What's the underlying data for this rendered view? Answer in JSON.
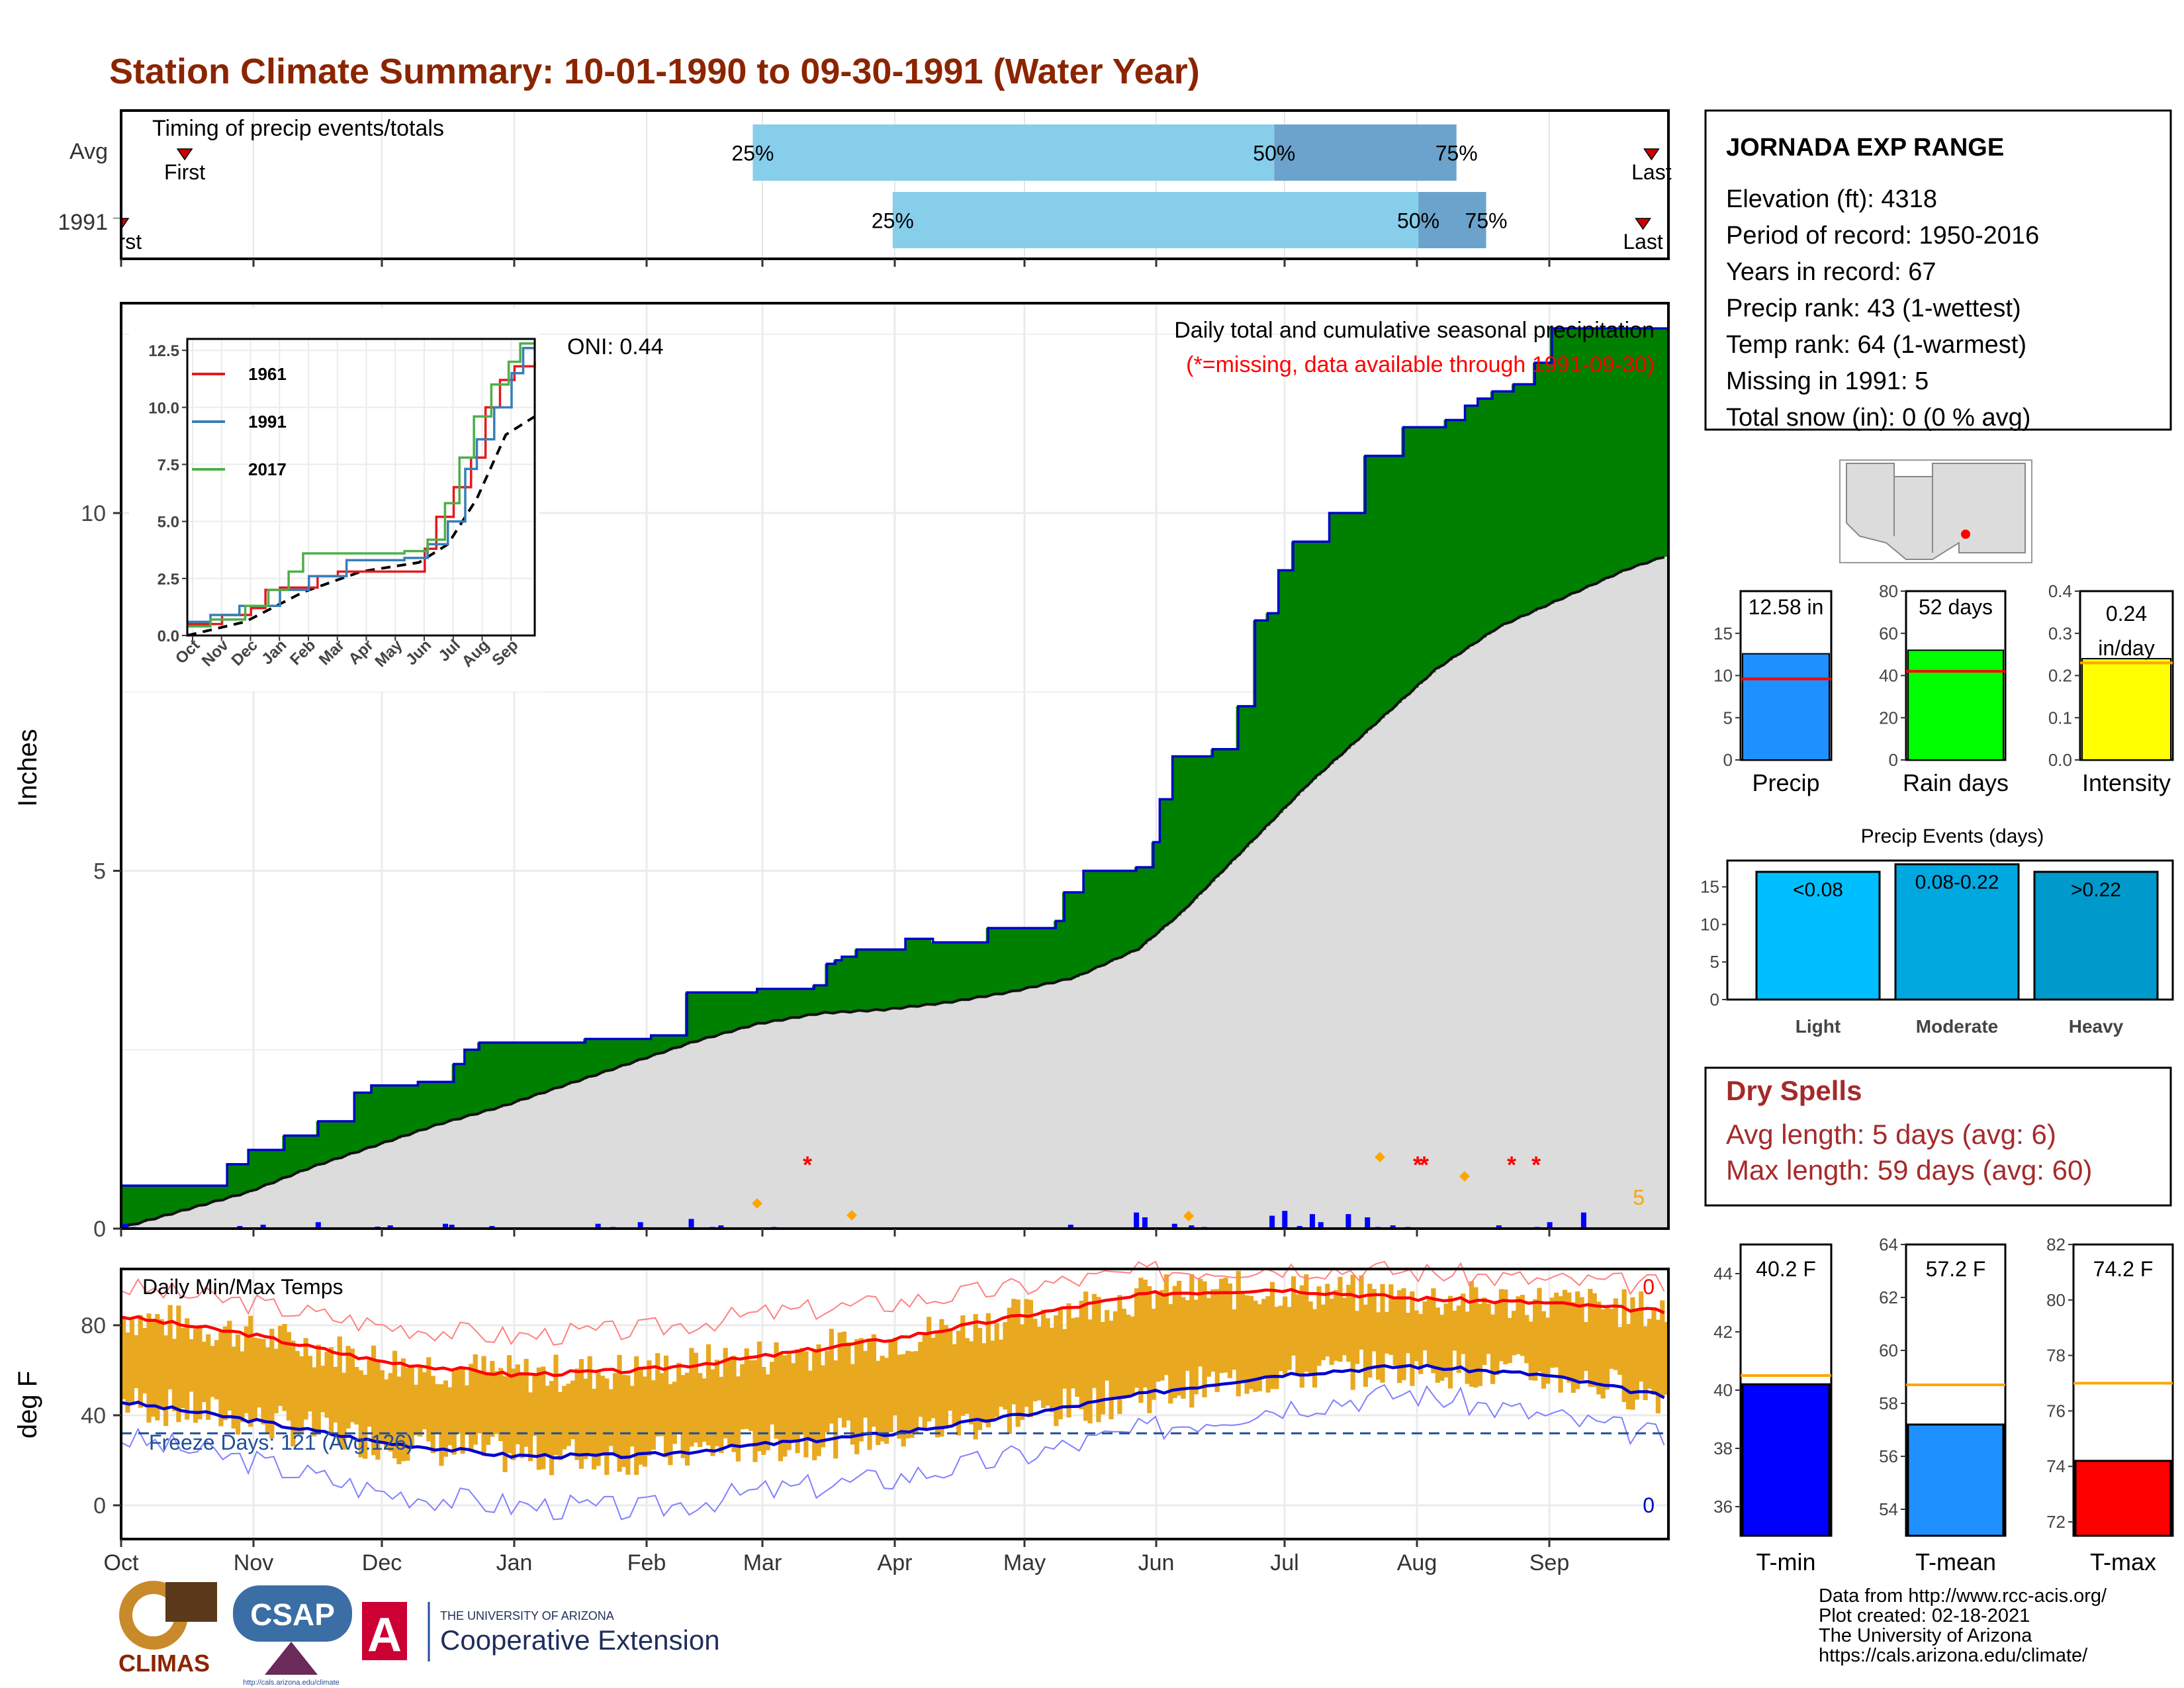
{
  "title": "Station Climate Summary: 10-01-1990 to 09-30-1991 (Water Year)",
  "colors": {
    "title": "#8B2500",
    "light_blue": "#87CEEB",
    "mid_blue": "#6BA3CC",
    "green": "#008000",
    "brown": "#8B5A1A",
    "gray_fill": "#DCDCDC",
    "blue_line": "#0000CD",
    "red": "#FF0000",
    "orange": "#FFA500",
    "temp_bar": "#E8A820",
    "dry_red": "#A52A2A"
  },
  "months": [
    "Oct",
    "Nov",
    "Dec",
    "Jan",
    "Feb",
    "Mar",
    "Apr",
    "May",
    "Jun",
    "Jul",
    "Aug",
    "Sep"
  ],
  "timing": {
    "label": "Timing of precip events/totals",
    "rows": [
      {
        "name": "Avg",
        "first_label": "First",
        "last_label": "Last",
        "first_doy": 15,
        "last_doy": 361,
        "p25": 149,
        "p50": 272,
        "p75": 315
      },
      {
        "name": "1991",
        "first_label": "First",
        "last_label": "Last",
        "first_doy": 0,
        "last_doy": 359,
        "p25": 182,
        "p50": 306,
        "p75": 322
      }
    ],
    "pct_labels": [
      "25%",
      "50%",
      "75%"
    ]
  },
  "precip_panel": {
    "ylabel": "Inches",
    "oni": "ONI: 0.44",
    "caption": "Daily total and cumulative seasonal precipitation",
    "missing_note": "(*=missing, data available through 1991-09-30)",
    "missing_count": "5",
    "yticks": [
      "0",
      "5",
      "10"
    ]
  },
  "inset": {
    "yticks": [
      "0.0",
      "2.5",
      "5.0",
      "7.5",
      "10.0",
      "12.5"
    ],
    "months": [
      "Oct",
      "Nov",
      "Dec",
      "Jan",
      "Feb",
      "Mar",
      "Apr",
      "May",
      "Jun",
      "Jul",
      "Aug",
      "Sep"
    ],
    "legend": [
      {
        "name": "1961",
        "color": "#E41A1C"
      },
      {
        "name": "1991",
        "color": "#377EB8"
      },
      {
        "name": "2017",
        "color": "#4DAF4A"
      }
    ]
  },
  "temp_panel": {
    "ylabel": "deg F",
    "label": "Daily Min/Max Temps",
    "freeze": "Freeze Days: 121 (Avg:126)",
    "max_count": "0",
    "min_count": "0",
    "yticks": [
      "0",
      "40",
      "80"
    ]
  },
  "station": {
    "name": "JORNADA EXP RANGE",
    "lines": [
      "Elevation (ft): 4318",
      "Period of record: 1950-2016",
      "Years in record: 67",
      "Precip rank: 43 (1-wettest)",
      "Temp rank: 64 (1-warmest)",
      "Missing in 1991: 5",
      "Total snow (in): 0 (0 % avg)"
    ]
  },
  "mini_bars": [
    {
      "label": "Precip",
      "value_text": "12.58 in",
      "value": 12.58,
      "avg": 9.6,
      "max": 20,
      "ticks": [
        "0",
        "5",
        "10",
        "15"
      ],
      "color": "#1E90FF"
    },
    {
      "label": "Rain days",
      "value_text": "52 days",
      "value": 52,
      "avg": 42,
      "max": 80,
      "ticks": [
        "0",
        "20",
        "40",
        "60",
        "80"
      ],
      "color": "#00FF00"
    },
    {
      "label": "Intensity",
      "value_text": "0.24 in/day",
      "value": 0.24,
      "avg": 0.23,
      "max": 0.4,
      "ticks": [
        "0.0",
        "0.1",
        "0.2",
        "0.3",
        "0.4"
      ],
      "color": "#FFFF00"
    }
  ],
  "precip_events": {
    "title": "Precip Events (days)",
    "ticks": [
      "0",
      "5",
      "10",
      "15"
    ],
    "bars": [
      {
        "label": "Light",
        "inner": "<0.08",
        "value": 17,
        "color": "#00BFFF"
      },
      {
        "label": "Moderate",
        "inner": "0.08-0.22",
        "value": 18,
        "color": "#00A8E0"
      },
      {
        "label": "Heavy",
        "inner": ">0.22",
        "value": 17,
        "color": "#0099CC"
      }
    ]
  },
  "dry_spells": {
    "title": "Dry Spells",
    "avg": "Avg length: 5 days (avg: 6)",
    "max": "Max length: 59 days (avg: 60)"
  },
  "temp_bars": [
    {
      "label": "T-min",
      "value_text": "40.2 F",
      "value": 40.2,
      "avg": 40.5,
      "ymin": 35,
      "ymax": 45,
      "ticks": [
        "36",
        "38",
        "40",
        "42",
        "44"
      ],
      "color": "#0000FF"
    },
    {
      "label": "T-mean",
      "value_text": "57.2 F",
      "value": 57.2,
      "avg": 58.7,
      "ymin": 53,
      "ymax": 64,
      "ticks": [
        "54",
        "56",
        "58",
        "60",
        "62",
        "64"
      ],
      "color": "#1E90FF"
    },
    {
      "label": "T-max",
      "value_text": "74.2 F",
      "value": 74.2,
      "avg": 77,
      "ymin": 71.5,
      "ymax": 82,
      "ticks": [
        "72",
        "74",
        "76",
        "78",
        "80",
        "82"
      ],
      "color": "#FF0000"
    }
  ],
  "footer": {
    "lines": [
      "Data from http://www.rcc-acis.org/",
      "Plot created: 02-18-2021",
      "The University of Arizona",
      "https://cals.arizona.edu/climate/"
    ],
    "logos": {
      "climas": "CLIMAS",
      "csap": "CSAP",
      "csap_url": "http://cals.arizona.edu/climate",
      "ua_small": "THE UNIVERSITY OF ARIZONA",
      "ua_big": "Cooperative Extension"
    }
  },
  "chart_data": [
    {
      "type": "area",
      "title": "Daily total and cumulative seasonal precipitation",
      "ylabel": "Inches",
      "ylim": [
        0,
        12.6
      ],
      "x_unit": "day of water year",
      "cumulative_1991": [
        [
          0,
          0.6
        ],
        [
          20,
          0.6
        ],
        [
          50,
          0.9
        ],
        [
          60,
          1.1
        ],
        [
          77,
          1.3
        ],
        [
          83,
          1.3
        ],
        [
          93,
          1.5
        ],
        [
          110,
          1.9
        ],
        [
          118,
          2.0
        ],
        [
          140,
          2.05
        ],
        [
          157,
          2.3
        ],
        [
          162,
          2.5
        ],
        [
          169,
          2.6
        ],
        [
          190,
          2.6
        ],
        [
          219,
          2.65
        ],
        [
          229,
          2.65
        ],
        [
          250,
          2.7
        ],
        [
          267,
          3.3
        ],
        [
          290,
          3.3
        ],
        [
          300,
          3.35
        ],
        [
          307,
          3.35
        ],
        [
          327,
          3.4
        ],
        [
          333,
          3.7
        ],
        [
          337,
          3.75
        ],
        [
          340,
          3.8
        ],
        [
          347,
          3.9
        ],
        [
          352,
          3.9
        ],
        [
          370,
          4.05
        ],
        [
          378,
          4.05
        ],
        [
          383,
          4.0
        ],
        [
          400,
          4.0
        ],
        [
          409,
          4.2
        ],
        [
          426,
          4.2
        ],
        [
          441,
          4.3
        ],
        [
          445,
          4.7
        ],
        [
          454,
          5.0
        ],
        [
          470,
          5.0
        ],
        [
          479,
          5.05
        ],
        [
          487,
          5.4
        ],
        [
          490,
          6.0
        ],
        [
          496,
          6.6
        ],
        [
          515,
          6.7
        ],
        [
          527,
          7.3
        ],
        [
          535,
          8.5
        ],
        [
          541,
          8.6
        ],
        [
          546,
          9.2
        ],
        [
          553,
          9.6
        ],
        [
          570,
          10.0
        ],
        [
          587,
          10.8
        ],
        [
          605,
          11.2
        ],
        [
          625,
          11.3
        ],
        [
          634,
          11.5
        ],
        [
          640,
          11.6
        ],
        [
          647,
          11.7
        ],
        [
          657,
          11.8
        ],
        [
          667,
          12.1
        ],
        [
          675,
          12.58
        ],
        [
          730,
          12.58
        ]
      ],
      "cumulative_avg": [
        [
          0,
          0
        ],
        [
          30,
          0.25
        ],
        [
          60,
          0.5
        ],
        [
          90,
          0.85
        ],
        [
          120,
          1.15
        ],
        [
          150,
          1.45
        ],
        [
          180,
          1.7
        ],
        [
          210,
          2.0
        ],
        [
          240,
          2.3
        ],
        [
          270,
          2.6
        ],
        [
          300,
          2.85
        ],
        [
          330,
          3.0
        ],
        [
          360,
          3.05
        ],
        [
          390,
          3.15
        ],
        [
          420,
          3.3
        ],
        [
          450,
          3.5
        ],
        [
          480,
          3.9
        ],
        [
          500,
          4.4
        ],
        [
          520,
          5.0
        ],
        [
          540,
          5.6
        ],
        [
          560,
          6.2
        ],
        [
          590,
          7.0
        ],
        [
          620,
          7.8
        ],
        [
          650,
          8.4
        ],
        [
          680,
          8.8
        ],
        [
          710,
          9.2
        ],
        [
          730,
          9.4
        ]
      ],
      "daily_bars": [
        [
          2,
          0.15
        ],
        [
          6,
          0.05
        ],
        [
          56,
          0.08
        ],
        [
          67,
          0.12
        ],
        [
          93,
          0.2
        ],
        [
          121,
          0.06
        ],
        [
          127,
          0.1
        ],
        [
          151,
          0.04
        ],
        [
          153,
          0.15
        ],
        [
          156,
          0.12
        ],
        [
          170,
          0.04
        ],
        [
          175,
          0.08
        ],
        [
          225,
          0.15
        ],
        [
          232,
          0.05
        ],
        [
          245,
          0.2
        ],
        [
          269,
          0.3
        ],
        [
          279,
          0.05
        ],
        [
          283,
          0.1
        ],
        [
          308,
          0.05
        ],
        [
          418,
          0.02
        ],
        [
          448,
          0.12
        ],
        [
          470,
          0.03
        ],
        [
          479,
          0.5
        ],
        [
          483,
          0.35
        ],
        [
          489,
          0.04
        ],
        [
          497,
          0.15
        ],
        [
          505,
          0.1
        ],
        [
          511,
          0.05
        ],
        [
          543,
          0.4
        ],
        [
          549,
          0.55
        ],
        [
          556,
          0.08
        ],
        [
          562,
          0.45
        ],
        [
          566,
          0.2
        ],
        [
          579,
          0.45
        ],
        [
          588,
          0.35
        ],
        [
          593,
          0.05
        ],
        [
          600,
          0.1
        ],
        [
          607,
          0.05
        ],
        [
          620,
          0.04
        ],
        [
          628,
          0.03
        ],
        [
          650,
          0.1
        ],
        [
          668,
          0.05
        ],
        [
          674,
          0.2
        ],
        [
          690,
          0.5
        ]
      ],
      "monthly_x_ticks": [
        "Oct",
        "Nov",
        "Dec",
        "Jan",
        "Feb",
        "Mar",
        "Apr",
        "May",
        "Jun",
        "Jul",
        "Aug",
        "Sep"
      ]
    },
    {
      "type": "line",
      "title": "Daily Min/Max Temps",
      "ylabel": "deg F",
      "ylim": [
        -15,
        105
      ],
      "x": [
        0,
        30,
        61,
        92,
        123,
        151,
        182,
        212,
        243,
        273,
        304,
        335,
        365
      ],
      "series": [
        {
          "name": "avg max",
          "values": [
            84,
            76,
            64,
            58,
            60,
            66,
            74,
            84,
            94,
            96,
            92,
            90,
            86
          ]
        },
        {
          "name": "avg min",
          "values": [
            46,
            38,
            28,
            22,
            22,
            27,
            32,
            40,
            50,
            58,
            62,
            58,
            48
          ]
        },
        {
          "name": "record max",
          "values": [
            97,
            90,
            80,
            75,
            78,
            85,
            90,
            97,
            104,
            106,
            104,
            100,
            98
          ]
        },
        {
          "name": "record min",
          "values": [
            30,
            20,
            6,
            0,
            -2,
            6,
            12,
            22,
            34,
            44,
            50,
            40,
            30
          ]
        }
      ],
      "freeze_line": 32
    }
  ]
}
